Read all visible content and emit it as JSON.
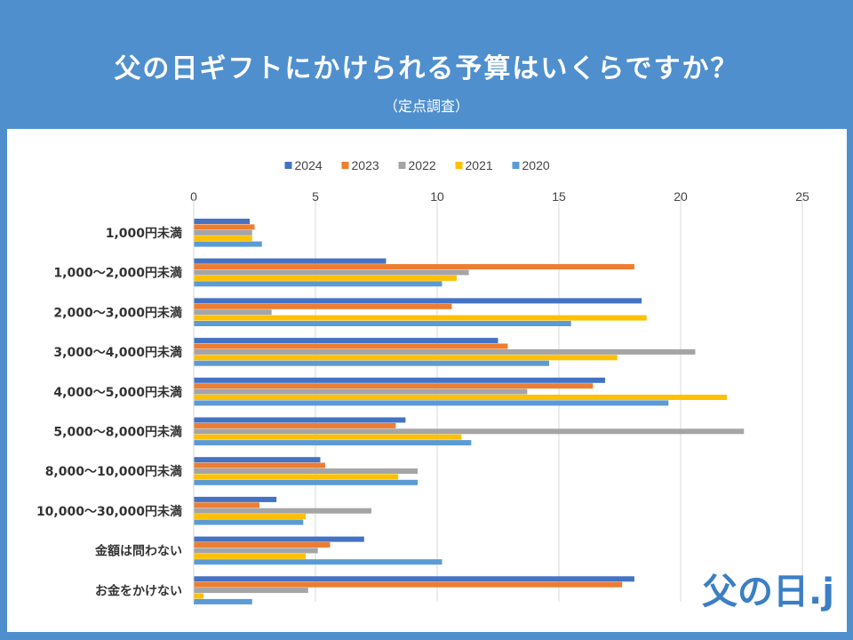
{
  "header": {
    "title": "父の日ギフトにかけられる予算はいくらですか？",
    "subtitle": "（定点調査）"
  },
  "logo": {
    "text": "父の日.jp"
  },
  "chart_data": {
    "type": "bar",
    "orientation": "horizontal",
    "categories": [
      "1,000円未満",
      "1,000～2,000円未満",
      "2,000～3,000円未満",
      "3,000～4,000円未満",
      "4,000～5,000円未満",
      "5,000～8,000円未満",
      "8,000～10,000円未満",
      "10,000～30,000円未満",
      "金額は問わない",
      "お金をかけない"
    ],
    "series": [
      {
        "name": "2024",
        "color": "#4472c4",
        "values": [
          2.3,
          7.9,
          18.4,
          12.5,
          16.9,
          8.7,
          5.2,
          3.4,
          7.0,
          18.1
        ]
      },
      {
        "name": "2023",
        "color": "#ed7d31",
        "values": [
          2.5,
          18.1,
          10.6,
          12.9,
          16.4,
          8.3,
          5.4,
          2.7,
          5.6,
          17.6
        ]
      },
      {
        "name": "2022",
        "color": "#a5a5a5",
        "values": [
          2.4,
          11.3,
          3.2,
          20.6,
          13.7,
          22.6,
          9.2,
          7.3,
          5.1,
          4.7
        ]
      },
      {
        "name": "2021",
        "color": "#ffc000",
        "values": [
          2.4,
          10.8,
          18.6,
          17.4,
          21.9,
          11.0,
          8.4,
          4.6,
          4.6,
          0.4
        ]
      },
      {
        "name": "2020",
        "color": "#5b9bd5",
        "values": [
          2.8,
          10.2,
          15.5,
          14.6,
          19.5,
          11.4,
          9.2,
          4.5,
          10.2,
          2.4
        ]
      }
    ],
    "xlim": [
      0,
      25
    ],
    "xticks": [
      0,
      5,
      10,
      15,
      20,
      25
    ],
    "grid": true,
    "legend": "top"
  }
}
